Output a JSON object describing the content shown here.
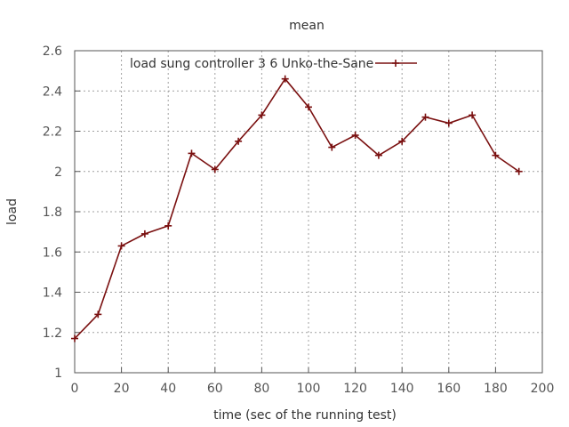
{
  "chart_data": {
    "type": "line",
    "title": "mean",
    "xlabel": "time (sec of the running test)",
    "ylabel": "load",
    "xlim": [
      0,
      200
    ],
    "ylim": [
      1,
      2.6
    ],
    "x_ticks": [
      0,
      20,
      40,
      60,
      80,
      100,
      120,
      140,
      160,
      180,
      200
    ],
    "y_ticks": [
      1,
      1.2,
      1.4,
      1.6,
      1.8,
      2,
      2.2,
      2.4,
      2.6
    ],
    "y_tick_labels": [
      "1",
      "1.2",
      "1.4",
      "1.6",
      "1.8",
      "2",
      "2.2",
      "2.4",
      "2.6"
    ],
    "grid": true,
    "legend_position": "top",
    "series": [
      {
        "name": "load sung controller 3 6 Unko-the-Sane",
        "color": "#7a1010",
        "x": [
          0,
          10,
          20,
          30,
          40,
          50,
          60,
          70,
          80,
          90,
          100,
          110,
          120,
          130,
          140,
          150,
          160,
          170,
          180,
          190
        ],
        "y": [
          1.17,
          1.29,
          1.63,
          1.69,
          1.73,
          2.09,
          2.01,
          2.15,
          2.28,
          2.46,
          2.32,
          2.12,
          2.18,
          2.08,
          2.15,
          2.27,
          2.24,
          2.28,
          2.08,
          2.0
        ]
      }
    ]
  }
}
